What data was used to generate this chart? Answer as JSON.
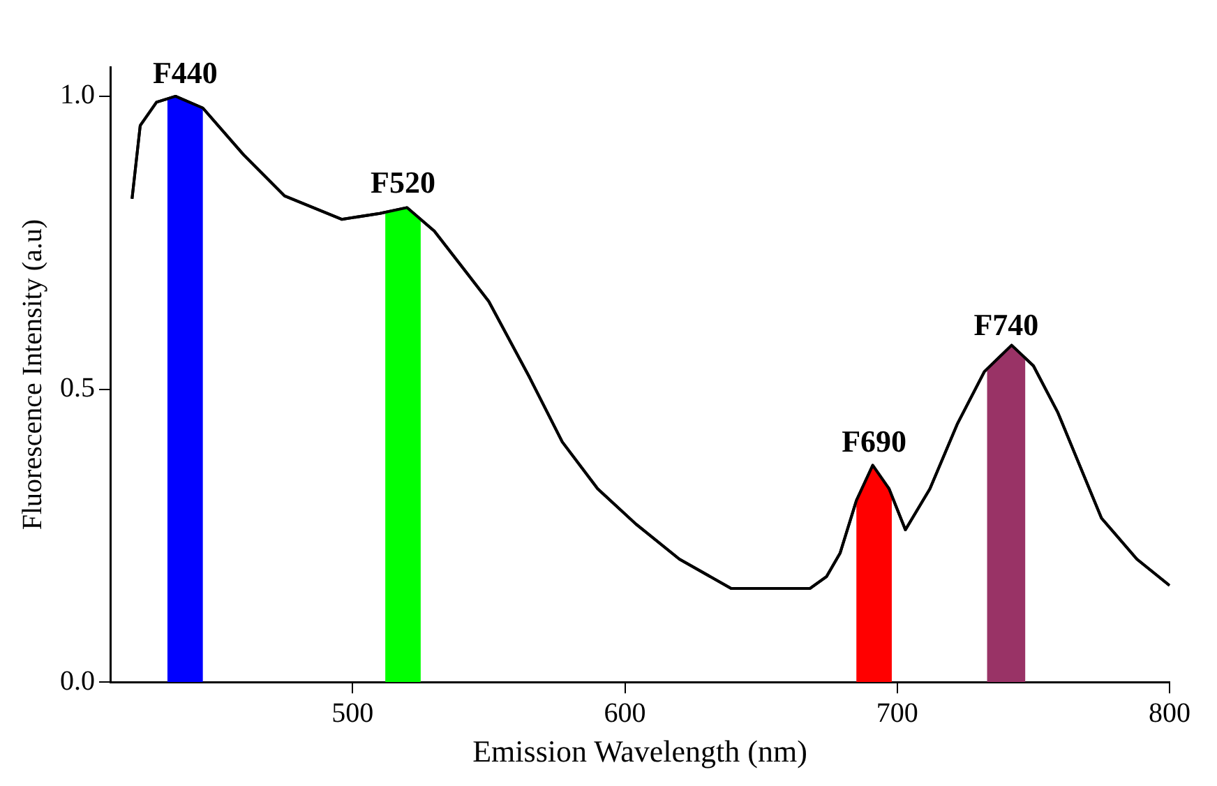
{
  "chart_data": {
    "type": "line",
    "xlabel": "Emission Wavelength (nm)",
    "ylabel": "Fluorescence Intensity (a.u)",
    "xlim": [
      411,
      800
    ],
    "xticks": [
      500,
      600,
      700,
      800
    ],
    "ylim": [
      0,
      1.05
    ],
    "yticks": [
      {
        "value": 0,
        "label": "0.0"
      },
      {
        "value": 0.5,
        "label": "0.5"
      },
      {
        "value": 1,
        "label": "1.0"
      }
    ],
    "grid": false,
    "marker": "none",
    "line_style": "solid",
    "series": [
      {
        "color": "#000000",
        "x": [
          419,
          422,
          428,
          435,
          445,
          460,
          475,
          496,
          510,
          520,
          530,
          540,
          550,
          565,
          577,
          590,
          604,
          620,
          639,
          668,
          674,
          679,
          685,
          691,
          697,
          703,
          712,
          722,
          732,
          742,
          750,
          759,
          767,
          775,
          788,
          800
        ],
        "values": [
          0.825,
          0.95,
          0.99,
          1.0,
          0.98,
          0.9,
          0.83,
          0.79,
          0.8,
          0.81,
          0.77,
          0.71,
          0.65,
          0.52,
          0.41,
          0.33,
          0.27,
          0.21,
          0.16,
          0.16,
          0.18,
          0.22,
          0.31,
          0.37,
          0.33,
          0.26,
          0.33,
          0.44,
          0.53,
          0.575,
          0.54,
          0.46,
          0.37,
          0.28,
          0.21,
          0.165
        ]
      }
    ],
    "bands": [
      {
        "axis": "x",
        "from": 432,
        "to": 445,
        "label": "F440",
        "color": "#0000ff"
      },
      {
        "axis": "x",
        "from": 512,
        "to": 525,
        "label": "F520",
        "color": "#00ff00"
      },
      {
        "axis": "x",
        "from": 685,
        "to": 698,
        "label": "F690",
        "color": "#ff0000"
      },
      {
        "axis": "x",
        "from": 733,
        "to": 747,
        "label": "F740",
        "color": "#993366"
      }
    ]
  }
}
